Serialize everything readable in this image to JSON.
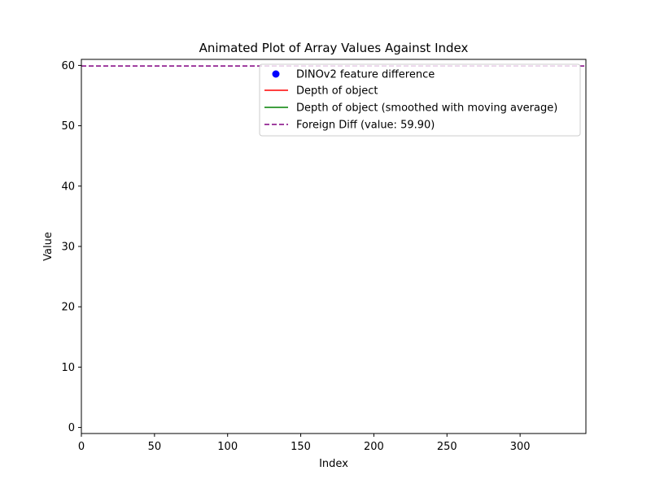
{
  "chart_data": {
    "type": "line",
    "title": "Animated Plot of Array Values Against Index",
    "xlabel": "Index",
    "ylabel": "Value",
    "xlim": [
      0,
      345
    ],
    "ylim": [
      -1,
      61
    ],
    "xticks": [
      0,
      50,
      100,
      150,
      200,
      250,
      300
    ],
    "yticks": [
      0,
      10,
      20,
      30,
      40,
      50,
      60
    ],
    "grid": false,
    "legend_position": "upper-right",
    "series": [
      {
        "name": "DINOv2 feature difference",
        "kind": "scatter",
        "color": "#0000ff",
        "x": [],
        "y": []
      },
      {
        "name": "Depth of object",
        "kind": "line",
        "color": "#ff0000",
        "x": [],
        "y": []
      },
      {
        "name": "Depth of object (smoothed with moving average)",
        "kind": "line",
        "color": "#008000",
        "x": [],
        "y": []
      },
      {
        "name": "Foreign Diff (value: 59.90)",
        "kind": "hline",
        "color": "#800080",
        "dashed": true,
        "y": 59.9
      }
    ]
  }
}
